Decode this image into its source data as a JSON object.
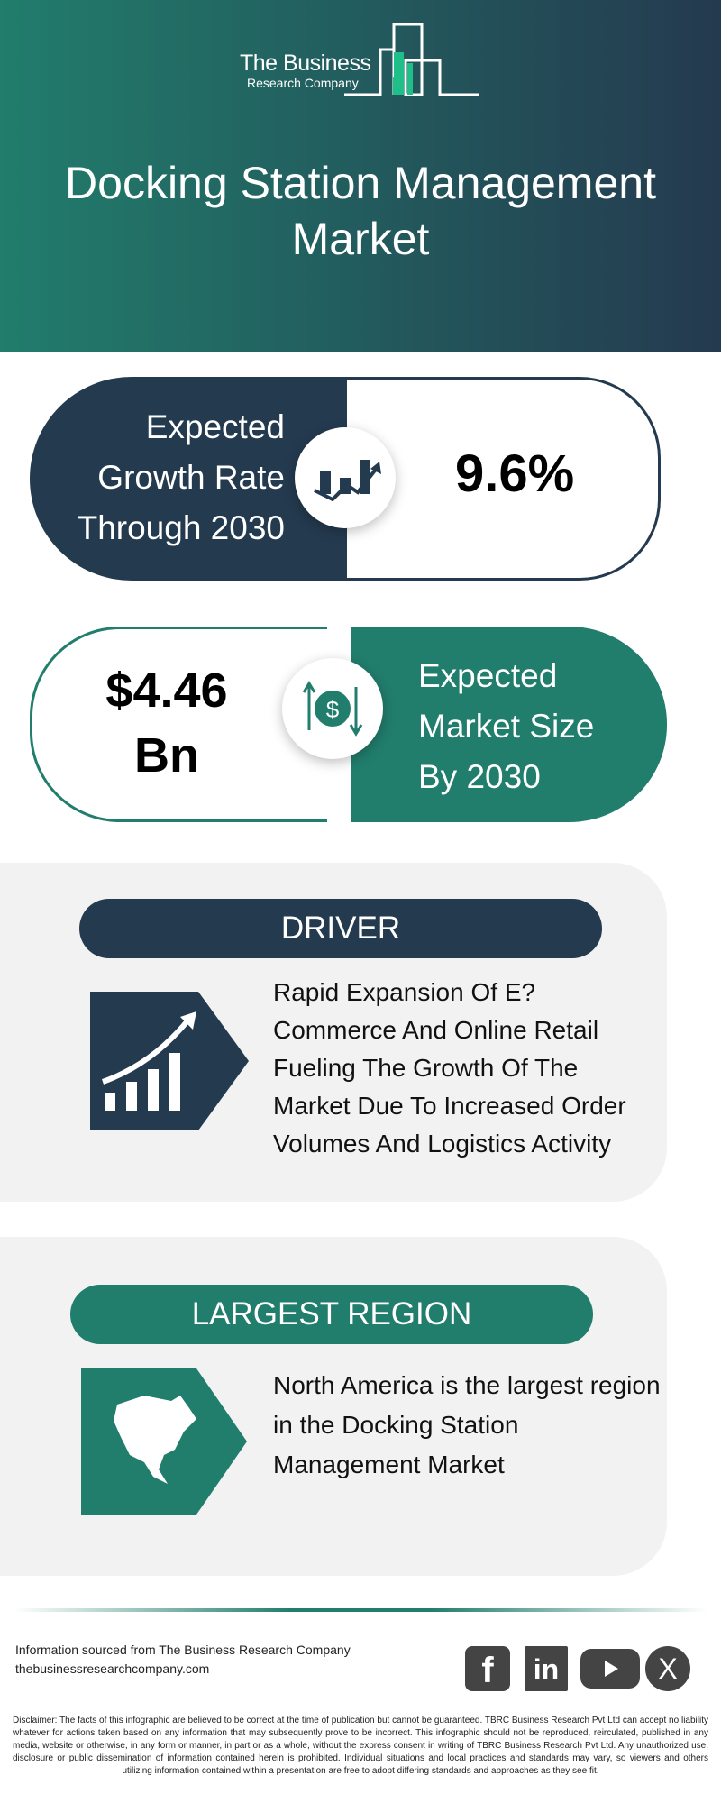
{
  "brand": {
    "line1": "The Business",
    "line2": "Research Company"
  },
  "title": "Docking Station Management Market",
  "growth": {
    "label_lines": [
      "Expected",
      "Growth Rate",
      "Through 2030"
    ],
    "value": "9.6%",
    "icon": "growth-chart-icon"
  },
  "market_size": {
    "value_lines": [
      "$4.46",
      "Bn"
    ],
    "label_lines": [
      "Expected",
      "Market Size",
      "By 2030"
    ],
    "icon": "dollar-exchange-icon"
  },
  "driver": {
    "heading": "DRIVER",
    "text": "Rapid Expansion Of E? Commerce And Online Retail Fueling The Growth Of The Market Due To Increased Order Volumes And Logistics Activity",
    "icon": "rising-bar-chart-icon"
  },
  "region": {
    "heading": "LARGEST REGION",
    "text": "North America is the largest region in the Docking Station Management Market",
    "icon": "north-america-map-icon"
  },
  "footer": {
    "source": "Information sourced from The Business Research Company",
    "website": "thebusinessresearchcompany.com",
    "social": [
      "facebook",
      "linkedin",
      "youtube",
      "x"
    ],
    "disclaimer": "Disclaimer: The facts of this infographic are believed to be correct at the time of publication but cannot be guaranteed. TBRC Business Research Pvt Ltd can accept no liability whatever for actions taken based on any information that may subsequently prove to be incorrect. This infographic should not be reproduced, reirculated, published in any media, website or otherwise, in any form or manner, in part or as a whole, without the express consent in writing of TBRC Business Research Pvt Ltd. Any unauthorized use, disclosure or public dissemination of information contained herein is prohibited. Individual situations and local practices and standards may vary, so viewers and others utilizing information contained within a presentation are free to adopt differing standards and approaches as they see fit."
  },
  "colors": {
    "navy": "#243a4f",
    "teal": "#217d6c",
    "panel": "#f2f2f2"
  }
}
